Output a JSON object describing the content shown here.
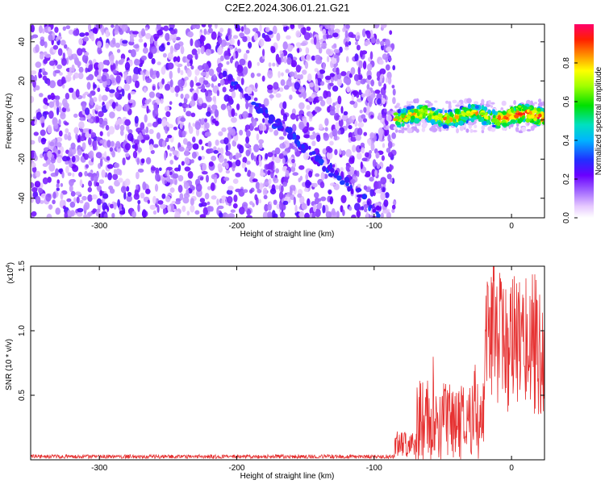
{
  "chart_data": [
    {
      "type": "heatmap",
      "title": "C2E2.2024.306.01.21.G21",
      "xlabel": "Height of straight line (km)",
      "ylabel": "Frequency (Hz)",
      "xlim": [
        -350,
        24
      ],
      "ylim": [
        -50,
        49
      ],
      "x_ticks": [
        -300,
        -200,
        -100,
        0
      ],
      "y_ticks": [
        -40,
        -20,
        0,
        20,
        40
      ],
      "x_tick_labels": [
        "-300",
        "-200",
        "-100",
        "0"
      ],
      "y_tick_labels": [
        "-40",
        "-20",
        "0",
        "20",
        "40"
      ],
      "colorbar": {
        "label": "Normalized spectral amplitude",
        "range": [
          0,
          1
        ],
        "ticks": [
          0.0,
          0.2,
          0.4,
          0.6,
          0.8
        ],
        "tick_labels": [
          "0.0",
          "0.2",
          "0.4",
          "0.6",
          "0.8"
        ]
      },
      "features": {
        "noise_region_x": [
          -350,
          -85
        ],
        "diagonal_streak": {
          "x_start": -210,
          "x_end": -95,
          "freq_start": 22,
          "freq_end": -48
        },
        "signal_band": {
          "x_start": -85,
          "x_end": 24,
          "center_freq_hz": 2,
          "half_width_hz": 4
        }
      }
    },
    {
      "type": "line",
      "xlabel": "Height of straight line (km)",
      "ylabel": "SNR (10 * v/v)",
      "y_multiplier_label": "(x10",
      "y_multiplier_exp": "4",
      "y_multiplier_close": ")",
      "xlim": [
        -350,
        24
      ],
      "ylim": [
        0,
        1.5
      ],
      "x_ticks": [
        -300,
        -200,
        -100,
        0
      ],
      "y_ticks": [
        0.5,
        1.0,
        1.5
      ],
      "x_tick_labels": [
        "-300",
        "-200",
        "-100",
        "0"
      ],
      "y_tick_labels": [
        "0.5",
        "1.0",
        "1.5"
      ],
      "series": [
        {
          "name": "SNR",
          "color": "#e63232",
          "segments": [
            {
              "x_from": -350,
              "x_to": -85,
              "mean": 0.025,
              "amplitude": 0.015
            },
            {
              "x_from": -85,
              "x_to": -70,
              "mean": 0.12,
              "amplitude": 0.1
            },
            {
              "x_from": -70,
              "x_to": -20,
              "mean": 0.3,
              "amplitude": 0.32
            },
            {
              "x_from": -20,
              "x_to": 24,
              "mean": 0.9,
              "amplitude": 0.55
            }
          ]
        }
      ]
    }
  ]
}
